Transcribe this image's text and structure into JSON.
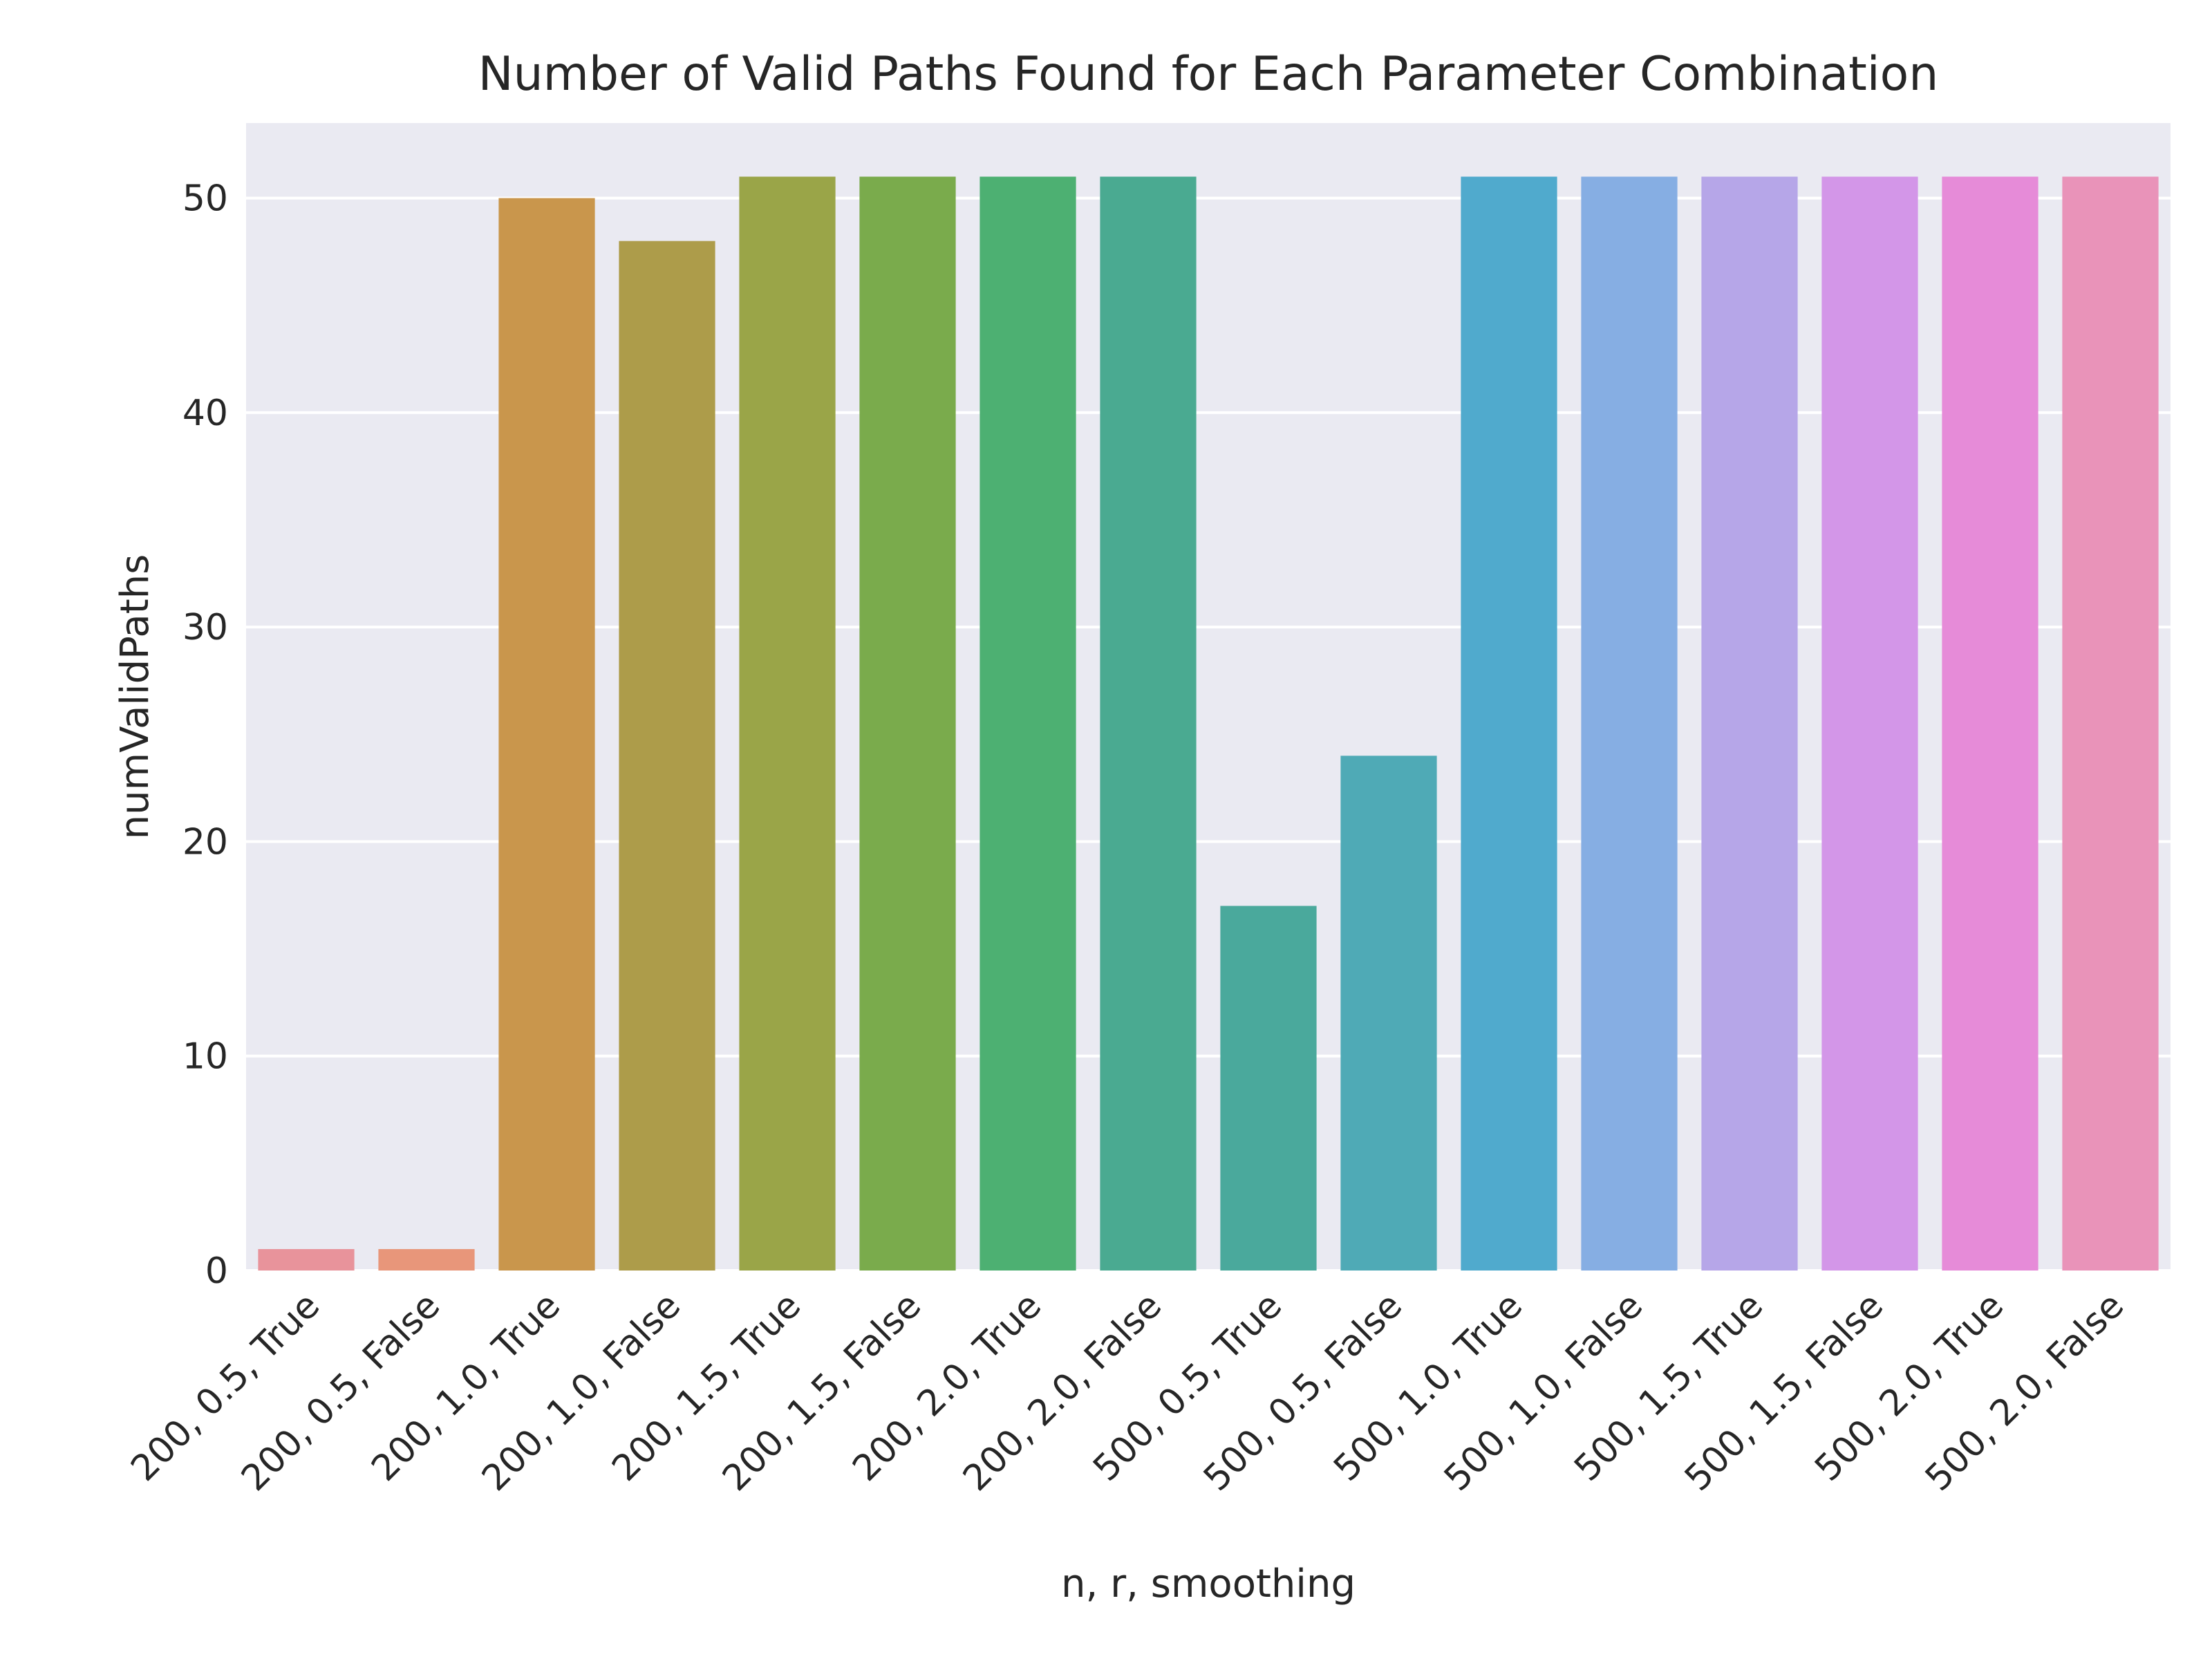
{
  "chart_data": {
    "type": "bar",
    "title": "Number of Valid Paths Found for Each Parameter Combination",
    "xlabel": "n, r, smoothing",
    "ylabel": "numValidPaths",
    "ylim": [
      0,
      53.5
    ],
    "yticks": [
      0,
      10,
      20,
      30,
      40,
      50
    ],
    "grid": true,
    "grid_color": "#ffffff",
    "background_color": "#eaeaf2",
    "categories": [
      "200, 0.5, True",
      "200, 0.5, False",
      "200, 1.0, True",
      "200, 1.0, False",
      "200, 1.5, True",
      "200, 1.5, False",
      "200, 2.0, True",
      "200, 2.0, False",
      "500, 0.5, True",
      "500, 0.5, False",
      "500, 1.0, True",
      "500, 1.0, False",
      "500, 1.5, True",
      "500, 1.5, False",
      "500, 2.0, True",
      "500, 2.0, False"
    ],
    "values": [
      1,
      1,
      50,
      48,
      51,
      51,
      51,
      51,
      17,
      24,
      51,
      51,
      51,
      51,
      51,
      51
    ],
    "colors": [
      "#e8939b",
      "#e8967a",
      "#c9964c",
      "#ad9c4a",
      "#9aa548",
      "#7aab4c",
      "#4db072",
      "#4aaa91",
      "#4aa99c",
      "#4faab6",
      "#50aacd",
      "#86aee3",
      "#b6a6e8",
      "#d396e8",
      "#e68bd8",
      "#e993b9"
    ]
  }
}
